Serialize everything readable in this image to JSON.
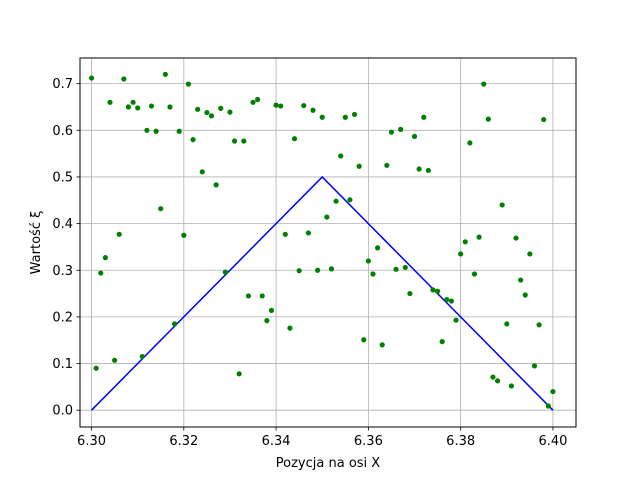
{
  "chart_data": {
    "type": "scatter",
    "title": "",
    "xlabel": "Pozycja na osi X",
    "ylabel": "Wartość ξ",
    "xlim": [
      6.2975,
      6.405
    ],
    "ylim": [
      -0.036,
      0.755
    ],
    "xticks": [
      "6.30",
      "6.32",
      "6.34",
      "6.36",
      "6.38",
      "6.40"
    ],
    "yticks": [
      "0.0",
      "0.1",
      "0.2",
      "0.3",
      "0.4",
      "0.5",
      "0.6",
      "0.7"
    ],
    "grid": true,
    "series": [
      {
        "kind": "line",
        "color": "#0000ff",
        "x": [
          6.3,
          6.35,
          6.4
        ],
        "y": [
          0.0,
          0.5,
          0.0
        ]
      },
      {
        "kind": "scatter",
        "color": "#008000",
        "x": [
          6.3,
          6.301,
          6.302,
          6.303,
          6.304,
          6.305,
          6.306,
          6.307,
          6.308,
          6.309,
          6.31,
          6.311,
          6.312,
          6.313,
          6.314,
          6.315,
          6.316,
          6.317,
          6.318,
          6.319,
          6.32,
          6.321,
          6.322,
          6.323,
          6.324,
          6.325,
          6.326,
          6.327,
          6.328,
          6.329,
          6.33,
          6.331,
          6.332,
          6.333,
          6.334,
          6.335,
          6.336,
          6.337,
          6.338,
          6.339,
          6.34,
          6.341,
          6.342,
          6.343,
          6.344,
          6.345,
          6.346,
          6.347,
          6.348,
          6.349,
          6.35,
          6.351,
          6.352,
          6.353,
          6.354,
          6.355,
          6.356,
          6.357,
          6.358,
          6.359,
          6.36,
          6.361,
          6.362,
          6.363,
          6.364,
          6.365,
          6.366,
          6.367,
          6.368,
          6.369,
          6.37,
          6.371,
          6.372,
          6.373,
          6.374,
          6.375,
          6.376,
          6.377,
          6.378,
          6.379,
          6.38,
          6.381,
          6.382,
          6.383,
          6.384,
          6.385,
          6.386,
          6.387,
          6.388,
          6.389,
          6.39,
          6.391,
          6.392,
          6.393,
          6.394,
          6.395,
          6.396,
          6.397,
          6.398,
          6.399,
          6.4
        ],
        "y": [
          0.712,
          0.09,
          0.294,
          0.327,
          0.66,
          0.107,
          0.377,
          0.71,
          0.65,
          0.66,
          0.648,
          0.115,
          0.6,
          0.652,
          0.598,
          0.432,
          0.72,
          0.65,
          0.185,
          0.598,
          0.375,
          0.699,
          0.58,
          0.645,
          0.511,
          0.638,
          0.631,
          0.483,
          0.647,
          0.296,
          0.639,
          0.577,
          0.078,
          0.577,
          0.245,
          0.66,
          0.666,
          0.245,
          0.192,
          0.214,
          0.654,
          0.652,
          0.377,
          0.176,
          0.582,
          0.299,
          0.653,
          0.38,
          0.643,
          0.3,
          0.628,
          0.414,
          0.303,
          0.448,
          0.545,
          0.628,
          0.451,
          0.634,
          0.523,
          0.151,
          0.32,
          0.292,
          0.348,
          0.14,
          0.525,
          0.596,
          0.302,
          0.602,
          0.306,
          0.25,
          0.587,
          0.517,
          0.628,
          0.514,
          0.258,
          0.255,
          0.147,
          0.237,
          0.234,
          0.193,
          0.335,
          0.361,
          0.573,
          0.292,
          0.371,
          0.699,
          0.624,
          0.071,
          0.063,
          0.44,
          0.185,
          0.052,
          0.369,
          0.279,
          0.247,
          0.335,
          0.095,
          0.183,
          0.623,
          0.009,
          0.04
        ]
      }
    ]
  }
}
